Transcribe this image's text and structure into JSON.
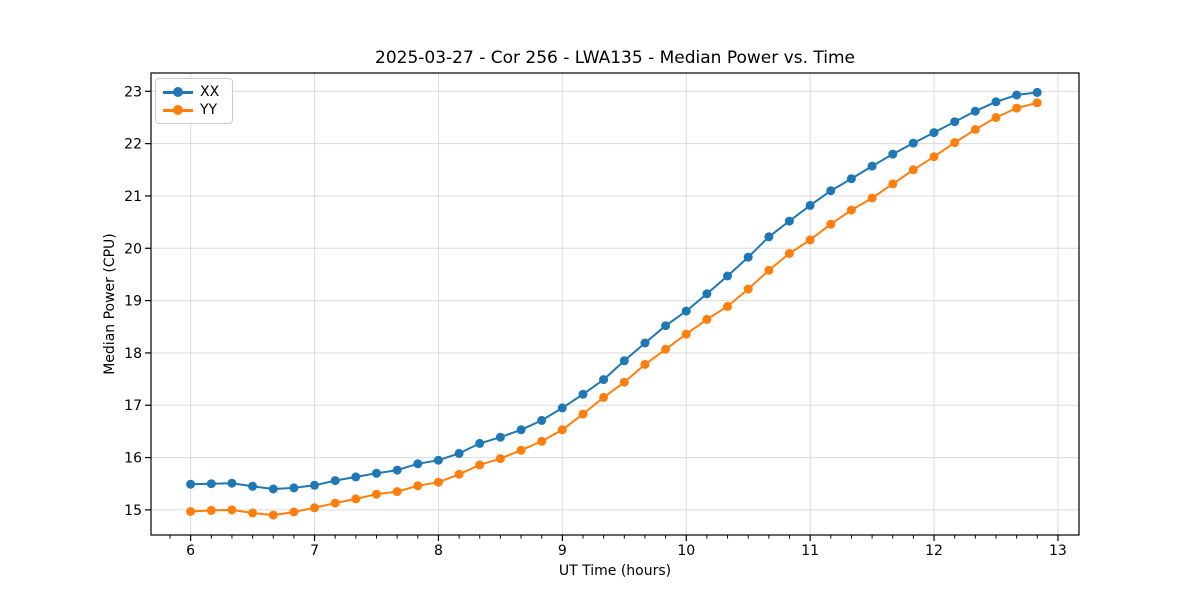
{
  "chart_data": {
    "type": "line",
    "title": "2025-03-27 - Cor 256 - LWA135 - Median Power vs. Time",
    "xlabel": "UT Time (hours)",
    "ylabel": "Median Power (CPU)",
    "xlim": [
      5.68,
      13.17
    ],
    "ylim": [
      14.52,
      23.35
    ],
    "x_ticks": [
      6,
      7,
      8,
      9,
      10,
      11,
      12,
      13
    ],
    "y_ticks": [
      15,
      16,
      17,
      18,
      19,
      20,
      21,
      22,
      23
    ],
    "x_minor_tick_step_hours": 0.1667,
    "grid": true,
    "legend_position": "upper-left",
    "x": [
      6.0,
      6.167,
      6.333,
      6.5,
      6.667,
      6.833,
      7.0,
      7.167,
      7.333,
      7.5,
      7.667,
      7.833,
      8.0,
      8.167,
      8.333,
      8.5,
      8.667,
      8.833,
      9.0,
      9.167,
      9.333,
      9.5,
      9.667,
      9.833,
      10.0,
      10.167,
      10.333,
      10.5,
      10.667,
      10.833,
      11.0,
      11.167,
      11.333,
      11.5,
      11.667,
      11.833,
      12.0,
      12.167,
      12.333,
      12.5,
      12.667,
      12.833
    ],
    "series": [
      {
        "name": "XX",
        "color": "#1f77b4",
        "values": [
          15.49,
          15.5,
          15.51,
          15.45,
          15.4,
          15.42,
          15.47,
          15.56,
          15.63,
          15.7,
          15.76,
          15.88,
          15.95,
          16.08,
          16.27,
          16.39,
          16.53,
          16.71,
          16.95,
          17.21,
          17.49,
          17.85,
          18.19,
          18.52,
          18.8,
          19.13,
          19.47,
          19.83,
          20.22,
          20.52,
          20.82,
          21.1,
          21.33,
          21.57,
          21.8,
          22.01,
          22.21,
          22.42,
          22.62,
          22.8,
          22.93,
          22.98
        ]
      },
      {
        "name": "YY",
        "color": "#ff7f0e",
        "values": [
          14.97,
          14.99,
          15.0,
          14.94,
          14.9,
          14.96,
          15.04,
          15.13,
          15.21,
          15.3,
          15.35,
          15.46,
          15.53,
          15.68,
          15.86,
          15.98,
          16.14,
          16.31,
          16.53,
          16.83,
          17.15,
          17.44,
          17.78,
          18.07,
          18.36,
          18.64,
          18.89,
          19.22,
          19.58,
          19.9,
          20.16,
          20.46,
          20.73,
          20.96,
          21.23,
          21.5,
          21.75,
          22.02,
          22.27,
          22.5,
          22.68,
          22.78
        ]
      }
    ],
    "style": {
      "grid_color": "#dcdcdc",
      "spine_color": "#000000",
      "background": "#ffffff",
      "marker_radius": 4.5,
      "line_width": 2
    }
  }
}
